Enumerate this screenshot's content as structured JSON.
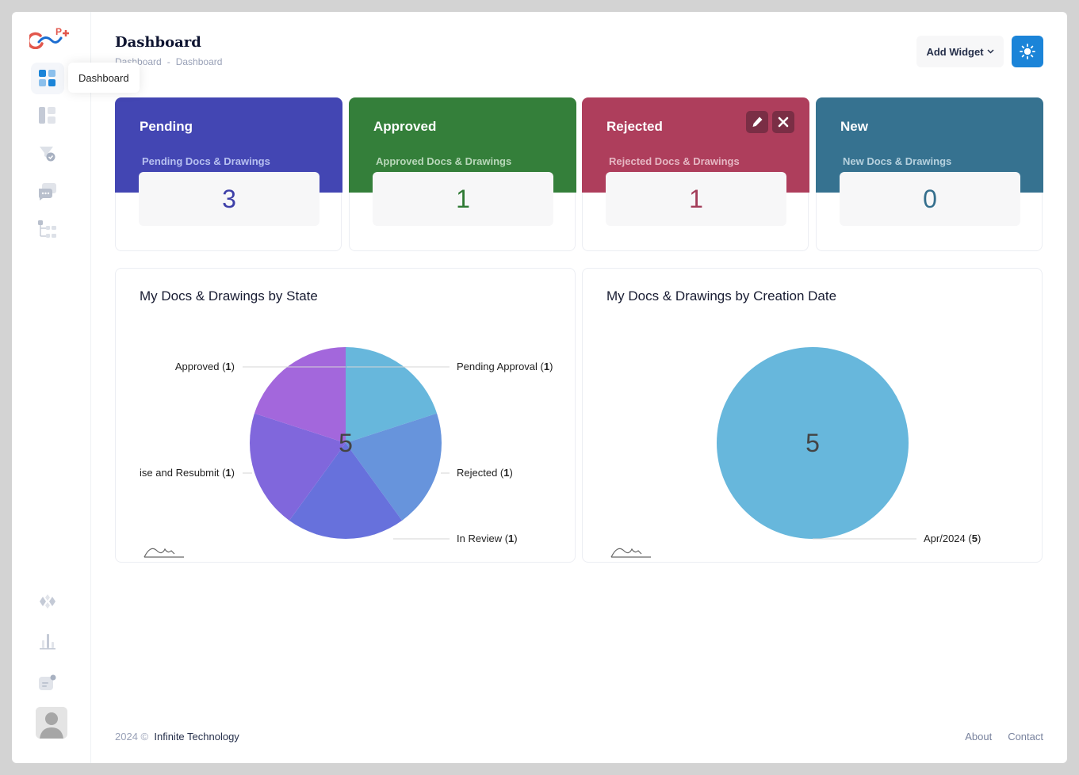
{
  "tooltip": "Dashboard",
  "header": {
    "title": "Dashboard",
    "breadcrumb": [
      "Dashboard",
      "-",
      "Dashboard"
    ],
    "add_widget_label": "Add Widget"
  },
  "cards": [
    {
      "title": "Pending",
      "subtitle": "Pending Docs & Drawings",
      "count": "3",
      "color": "#4346b3",
      "sub_color": "#b7c0f0",
      "count_color": "#3d3fa8"
    },
    {
      "title": "Approved",
      "subtitle": "Approved Docs & Drawings",
      "count": "1",
      "color": "#347f3a",
      "sub_color": "#b8d7b9",
      "count_color": "#2f7a34"
    },
    {
      "title": "Rejected",
      "subtitle": "Rejected Docs & Drawings",
      "count": "1",
      "color": "#ae3e5c",
      "sub_color": "#e6b8c4",
      "count_color": "#a33d59"
    },
    {
      "title": "New",
      "subtitle": "New Docs & Drawings",
      "count": "0",
      "color": "#367290",
      "sub_color": "#b6d1de",
      "count_color": "#356f8d"
    }
  ],
  "chart_data": [
    {
      "type": "pie",
      "title": "My Docs & Drawings by State",
      "total": "5",
      "series": [
        {
          "name": "Pending Approval",
          "value": 1,
          "color": "#67b7dc"
        },
        {
          "name": "Rejected",
          "value": 1,
          "color": "#6794dc"
        },
        {
          "name": "In Review",
          "value": 1,
          "color": "#6771dc"
        },
        {
          "name": "Revise and Resubmit",
          "value": 1,
          "color": "#8067dc"
        },
        {
          "name": "Approved",
          "value": 1,
          "color": "#a367dc"
        }
      ]
    },
    {
      "type": "pie",
      "title": "My Docs & Drawings by Creation Date",
      "total": "5",
      "series": [
        {
          "name": "Apr/2024",
          "value": 5,
          "color": "#67b7dc"
        }
      ]
    }
  ],
  "footer": {
    "year": "2024 ©",
    "company": "Infinite Technology",
    "about": "About",
    "contact": "Contact"
  }
}
